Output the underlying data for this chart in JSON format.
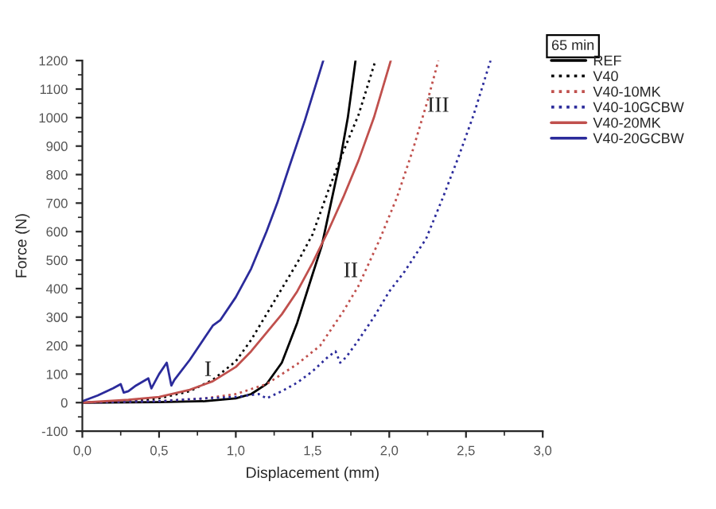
{
  "chart_data": {
    "type": "line",
    "xlabel": "Displacement (mm)",
    "ylabel": "Force (N)",
    "legend_title": "65 min",
    "legend": "top right",
    "grid": false,
    "xlim": [
      0,
      3.0
    ],
    "ylim": [
      -100,
      1200
    ],
    "xticks": [
      {
        "value": 0,
        "label": "0,0"
      },
      {
        "value": 0.5,
        "label": "0,5"
      },
      {
        "value": 1.0,
        "label": "1,0"
      },
      {
        "value": 1.5,
        "label": "1,5"
      },
      {
        "value": 2.0,
        "label": "2,0"
      },
      {
        "value": 2.5,
        "label": "2,5"
      },
      {
        "value": 3.0,
        "label": "3,0"
      }
    ],
    "yticks": [
      -100,
      0,
      100,
      200,
      300,
      400,
      500,
      600,
      700,
      800,
      900,
      1000,
      1100,
      1200
    ],
    "annotations": [
      "I",
      "II",
      "III"
    ],
    "series": [
      {
        "name": "REF",
        "color": "#000000",
        "line_style": "solid",
        "x": [
          0,
          0.5,
          0.8,
          1.0,
          1.1,
          1.2,
          1.3,
          1.4,
          1.5,
          1.56,
          1.62,
          1.68,
          1.73,
          1.78
        ],
        "values": [
          0,
          2,
          5,
          15,
          30,
          65,
          140,
          280,
          450,
          550,
          700,
          850,
          1000,
          1200
        ]
      },
      {
        "name": "V40",
        "color": "#000000",
        "line_style": "dotted",
        "x": [
          0,
          0.3,
          0.5,
          0.7,
          0.85,
          1.0,
          1.1,
          1.2,
          1.3,
          1.4,
          1.5,
          1.6,
          1.7,
          1.8,
          1.91
        ],
        "values": [
          0,
          5,
          15,
          40,
          80,
          145,
          220,
          310,
          400,
          490,
          590,
          740,
          880,
          1010,
          1200
        ]
      },
      {
        "name": "V40-10MK",
        "color": "#c0504d",
        "line_style": "dotted",
        "x": [
          0,
          0.5,
          0.8,
          1.0,
          1.2,
          1.4,
          1.55,
          1.7,
          1.8,
          1.94,
          2.05,
          2.15,
          2.25,
          2.32
        ],
        "values": [
          0,
          5,
          15,
          30,
          65,
          135,
          200,
          320,
          410,
          575,
          720,
          880,
          1060,
          1200
        ]
      },
      {
        "name": "V40-10GCBW",
        "color": "#2b2b9b",
        "line_style": "dotted",
        "x": [
          0,
          0.5,
          0.8,
          1.0,
          1.15,
          1.2,
          1.3,
          1.4,
          1.5,
          1.6,
          1.65,
          1.68,
          1.72,
          1.8,
          1.9,
          2.0,
          2.1,
          2.24,
          2.35,
          2.45,
          2.55,
          2.66
        ],
        "values": [
          0,
          5,
          15,
          20,
          30,
          15,
          40,
          70,
          110,
          160,
          180,
          140,
          160,
          220,
          300,
          390,
          460,
          575,
          720,
          860,
          1010,
          1200
        ]
      },
      {
        "name": "V40-20MK",
        "color": "#c0504d",
        "line_style": "solid",
        "x": [
          0,
          0.3,
          0.5,
          0.7,
          0.85,
          1.0,
          1.1,
          1.2,
          1.3,
          1.4,
          1.5,
          1.6,
          1.7,
          1.8,
          1.9,
          2.01
        ],
        "values": [
          0,
          10,
          20,
          45,
          75,
          125,
          180,
          245,
          310,
          390,
          490,
          600,
          720,
          850,
          1000,
          1200
        ]
      },
      {
        "name": "V40-20GCBW",
        "color": "#2b2b9b",
        "line_style": "solid",
        "x": [
          0,
          0.1,
          0.2,
          0.25,
          0.27,
          0.3,
          0.35,
          0.43,
          0.45,
          0.5,
          0.55,
          0.58,
          0.6,
          0.7,
          0.8,
          0.85,
          0.9,
          1.0,
          1.1,
          1.2,
          1.27,
          1.35,
          1.45,
          1.57
        ],
        "values": [
          5,
          25,
          50,
          65,
          35,
          40,
          60,
          85,
          50,
          100,
          140,
          60,
          80,
          150,
          230,
          270,
          290,
          370,
          470,
          600,
          700,
          830,
          990,
          1200
        ]
      }
    ]
  }
}
